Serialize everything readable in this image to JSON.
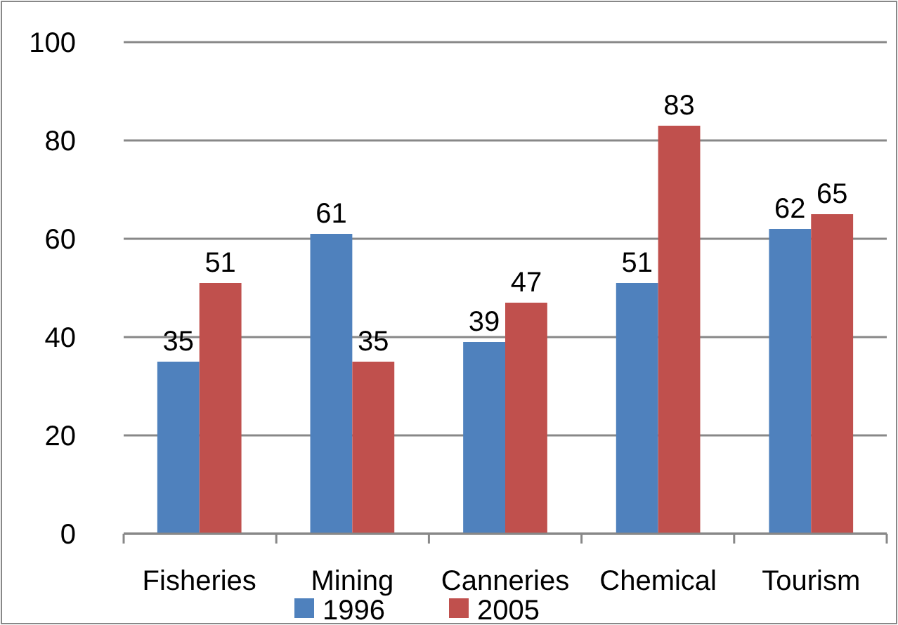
{
  "chart_data": {
    "type": "bar",
    "categories": [
      "Fisheries",
      "Mining",
      "Canneries",
      "Chemical",
      "Tourism"
    ],
    "series": [
      {
        "name": "1996",
        "color": "#4f81bd",
        "values": [
          35,
          61,
          39,
          51,
          62
        ]
      },
      {
        "name": "2005",
        "color": "#c0504d",
        "values": [
          51,
          35,
          47,
          83,
          65
        ]
      }
    ],
    "ylim": [
      0,
      100
    ],
    "yticks": [
      0,
      20,
      40,
      60,
      80,
      100
    ],
    "grid": "y",
    "legend": "bottom",
    "data_labels": true
  }
}
